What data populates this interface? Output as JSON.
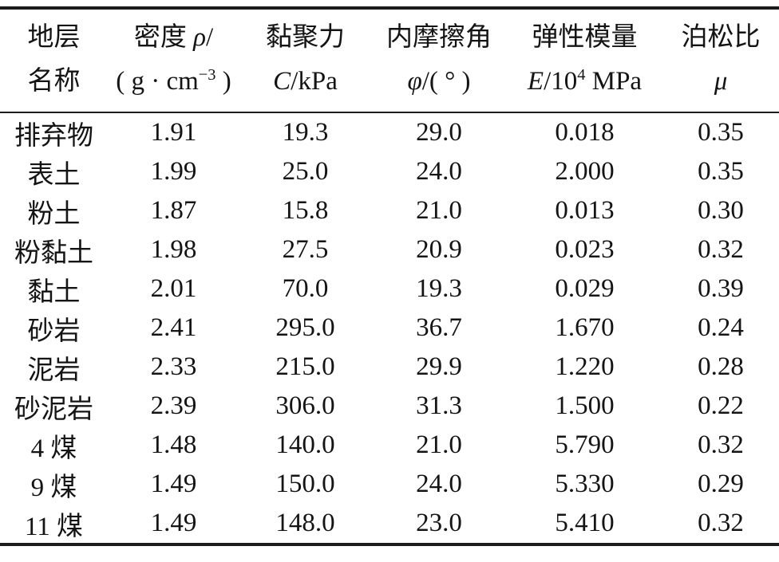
{
  "page": {
    "background_color": "#ffffff",
    "text_color": "#141414",
    "rule_color": "#1c1c1c"
  },
  "table": {
    "columns": [
      {
        "key": "stratum-name",
        "plain": "地层 名称",
        "lines": [
          [
            {
              "t": "地层"
            }
          ],
          [
            {
              "t": "名称"
            }
          ]
        ]
      },
      {
        "key": "density",
        "plain": "密度 ρ/( g · cm−3 )",
        "lines": [
          [
            {
              "t": "密度 "
            },
            {
              "t": "ρ",
              "i": true
            },
            {
              "t": "/"
            }
          ],
          [
            {
              "t": "( g · cm"
            },
            {
              "t": "−3",
              "sup": true
            },
            {
              "t": " )"
            }
          ]
        ]
      },
      {
        "key": "cohesion",
        "plain": "黏聚力 C/kPa",
        "lines": [
          [
            {
              "t": "黏聚力"
            }
          ],
          [
            {
              "t": "C",
              "i": true
            },
            {
              "t": "/kPa"
            }
          ]
        ]
      },
      {
        "key": "friction-angle",
        "plain": "内摩擦角 φ/( ° )",
        "lines": [
          [
            {
              "t": "内摩擦角"
            }
          ],
          [
            {
              "t": "φ",
              "i": true
            },
            {
              "t": "/( ° )"
            }
          ]
        ]
      },
      {
        "key": "elastic-modulus",
        "plain": "弹性模量 E/104 MPa",
        "lines": [
          [
            {
              "t": "弹性模量"
            }
          ],
          [
            {
              "t": "E",
              "i": true
            },
            {
              "t": "/10"
            },
            {
              "t": "4",
              "sup": true
            },
            {
              "t": " MPa"
            }
          ]
        ]
      },
      {
        "key": "poisson-ratio",
        "plain": "泊松比 μ",
        "lines": [
          [
            {
              "t": "泊松比"
            }
          ],
          [
            {
              "t": "μ",
              "i": true
            }
          ]
        ]
      }
    ],
    "rows": [
      [
        "排弃物",
        "1.91",
        "19.3",
        "29.0",
        "0.018",
        "0.35"
      ],
      [
        "表土",
        "1.99",
        "25.0",
        "24.0",
        "2.000",
        "0.35"
      ],
      [
        "粉土",
        "1.87",
        "15.8",
        "21.0",
        "0.013",
        "0.30"
      ],
      [
        "粉黏土",
        "1.98",
        "27.5",
        "20.9",
        "0.023",
        "0.32"
      ],
      [
        "黏土",
        "2.01",
        "70.0",
        "19.3",
        "0.029",
        "0.39"
      ],
      [
        "砂岩",
        "2.41",
        "295.0",
        "36.7",
        "1.670",
        "0.24"
      ],
      [
        "泥岩",
        "2.33",
        "215.0",
        "29.9",
        "1.220",
        "0.28"
      ],
      [
        "砂泥岩",
        "2.39",
        "306.0",
        "31.3",
        "1.500",
        "0.22"
      ],
      [
        "4 煤",
        "1.48",
        "140.0",
        "21.0",
        "5.790",
        "0.32"
      ],
      [
        "9 煤",
        "1.49",
        "150.0",
        "24.0",
        "5.330",
        "0.29"
      ],
      [
        "11 煤",
        "1.49",
        "148.0",
        "23.0",
        "5.410",
        "0.32"
      ]
    ]
  }
}
